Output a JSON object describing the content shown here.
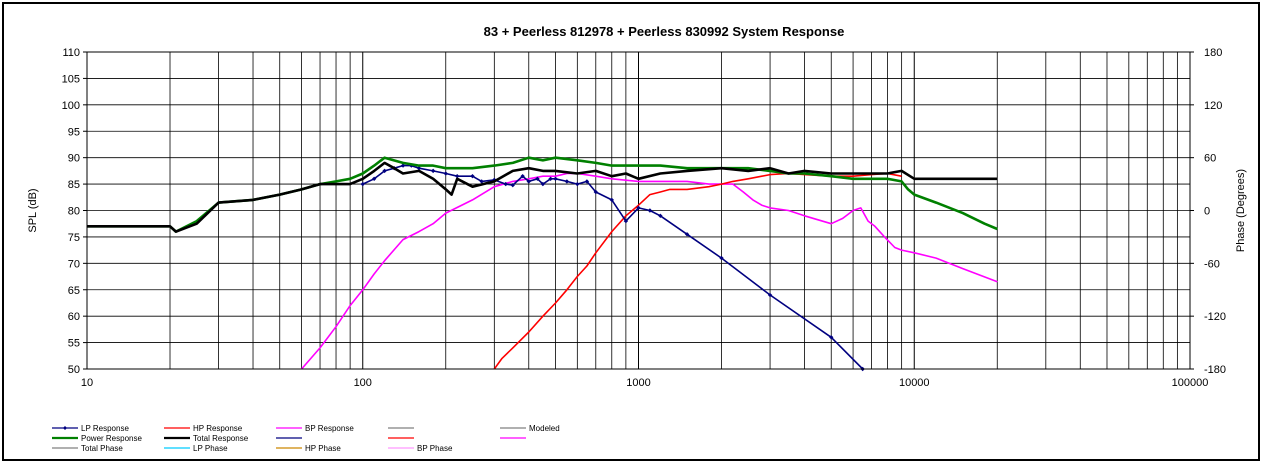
{
  "chart_data": {
    "type": "line",
    "title": "83 + Peerless  812978  + Peerless  830992   System Response",
    "xlabel": "",
    "ylabel": "SPL (dB)",
    "y2label": "Phase (Degrees)",
    "x_scale": "log",
    "xlim": [
      10,
      100000
    ],
    "ylim": [
      50,
      110
    ],
    "y2lim": [
      -180,
      180
    ],
    "grid": true,
    "legend_position": "bottom",
    "x_tick_labels": [
      "10",
      "100",
      "1000",
      "10000",
      "100000"
    ],
    "y_tick_labels": [
      "50",
      "55",
      "60",
      "65",
      "70",
      "75",
      "80",
      "85",
      "90",
      "95",
      "100",
      "105",
      "110"
    ],
    "y2_tick_labels": [
      "-180",
      "-120",
      "-60",
      "0",
      "60",
      "120",
      "180"
    ],
    "series": [
      {
        "name": "LP Response",
        "color": "#000080",
        "axis": "spl",
        "marker": "diamond",
        "x": [
          100,
          110,
          120,
          130,
          140,
          150,
          160,
          180,
          200,
          220,
          250,
          270,
          300,
          330,
          350,
          380,
          400,
          430,
          450,
          480,
          500,
          550,
          600,
          650,
          700,
          800,
          900,
          1000,
          1100,
          1200,
          1500,
          2000,
          3000,
          5000,
          6500
        ],
        "y": [
          85,
          86,
          87.5,
          88,
          88.5,
          88.5,
          88,
          87.5,
          87,
          86.5,
          86.5,
          85.5,
          85.8,
          85,
          84.8,
          86.5,
          85.5,
          86,
          85,
          86,
          86,
          85.5,
          85,
          85.5,
          83.5,
          82,
          78,
          80.5,
          80,
          79,
          75.5,
          71,
          64,
          56,
          50
        ]
      },
      {
        "name": "HP Response",
        "color": "#ff0000",
        "axis": "spl",
        "x": [
          300,
          320,
          350,
          400,
          450,
          500,
          550,
          600,
          650,
          700,
          800,
          900,
          1000,
          1100,
          1200,
          1300,
          1500,
          1800,
          2000,
          2200,
          2500,
          2800,
          3000,
          3500,
          4000,
          5000,
          6000,
          7000,
          8000,
          9000
        ],
        "y": [
          50,
          52,
          54,
          57,
          60,
          62.5,
          65,
          67.5,
          69.5,
          72,
          76,
          79,
          81,
          83,
          83.5,
          84,
          84,
          84.5,
          85,
          85.5,
          86,
          86.5,
          86.8,
          87,
          86.8,
          86.5,
          86.5,
          86.8,
          87,
          86.5
        ]
      },
      {
        "name": "BP Response",
        "color": "#ff00ff",
        "axis": "spl",
        "x": [
          60,
          70,
          80,
          90,
          100,
          110,
          120,
          140,
          160,
          180,
          200,
          250,
          300,
          350,
          400,
          450,
          500,
          550,
          600,
          700,
          800,
          1000,
          1200,
          1500,
          1800,
          2000,
          2200,
          2400,
          2600,
          2800,
          3000,
          3500,
          4000,
          5000,
          5500,
          6000,
          6400,
          6800,
          7200,
          7800,
          8500,
          9000,
          10000,
          12000,
          15000,
          20000
        ],
        "y": [
          50,
          54,
          58,
          62,
          65,
          68,
          70.5,
          74.5,
          76,
          77.5,
          79.5,
          82,
          84.5,
          85.5,
          86,
          86.5,
          86.5,
          87,
          87,
          86.5,
          86,
          85.5,
          85.5,
          85.5,
          85,
          85,
          85,
          83.5,
          82,
          81,
          80.5,
          80,
          79,
          77.5,
          78.5,
          80,
          80.5,
          78,
          77,
          75,
          73,
          72.5,
          72,
          71,
          69,
          66.5
        ]
      },
      {
        "name": "Power Response",
        "color": "#008000",
        "axis": "spl",
        "x": [
          10,
          20,
          21,
          25,
          30,
          40,
          50,
          60,
          70,
          80,
          90,
          100,
          110,
          120,
          140,
          160,
          180,
          200,
          250,
          300,
          350,
          400,
          450,
          500,
          600,
          700,
          800,
          1000,
          1200,
          1500,
          2000,
          2500,
          3000,
          3500,
          4000,
          5000,
          6000,
          7000,
          8000,
          9000,
          9500,
          10000,
          12000,
          15000,
          18000,
          20000
        ],
        "y": [
          77,
          77,
          76,
          78,
          81.5,
          82,
          83,
          84,
          85,
          85.5,
          86,
          87,
          88.5,
          90,
          89,
          88.5,
          88.5,
          88,
          88,
          88.5,
          89,
          90,
          89.5,
          90,
          89.5,
          89,
          88.5,
          88.5,
          88.5,
          88,
          88,
          88,
          87.5,
          87,
          87,
          86.5,
          86,
          86,
          86,
          85.5,
          84,
          83,
          81.5,
          79.5,
          77.5,
          76.5
        ]
      },
      {
        "name": "Total Response",
        "color": "#000000",
        "axis": "spl",
        "x": [
          10,
          20,
          21,
          25,
          30,
          40,
          50,
          60,
          70,
          80,
          90,
          100,
          110,
          120,
          130,
          140,
          160,
          180,
          200,
          210,
          220,
          250,
          300,
          350,
          400,
          450,
          500,
          600,
          700,
          800,
          900,
          1000,
          1200,
          1500,
          2000,
          2500,
          3000,
          3500,
          4000,
          5000,
          6000,
          7000,
          8000,
          9000,
          10000,
          15000,
          20000
        ],
        "y": [
          77,
          77,
          76,
          77.5,
          81.5,
          82,
          83,
          84,
          85,
          85,
          85,
          86,
          87.5,
          89,
          88,
          87,
          87.5,
          86,
          84,
          83,
          86,
          84.5,
          85.5,
          87.5,
          88,
          87.5,
          87.5,
          87,
          87.5,
          86.5,
          87,
          86,
          87,
          87.5,
          88,
          87.5,
          88,
          87,
          87.5,
          87,
          87,
          87,
          87,
          87.5,
          86,
          86,
          86
        ]
      },
      {
        "name": "",
        "color": "#808080",
        "axis": "spl",
        "x": [],
        "y": []
      },
      {
        "name": "Modeled",
        "color": "#808080",
        "axis": "spl",
        "x": [],
        "y": []
      },
      {
        "name": "",
        "color": "#000080",
        "axis": "spl",
        "x": [],
        "y": []
      },
      {
        "name": "",
        "color": "#ff0000",
        "axis": "spl",
        "x": [],
        "y": []
      },
      {
        "name": "",
        "color": "#ff00ff",
        "axis": "spl",
        "x": [],
        "y": []
      },
      {
        "name": "Total Phase",
        "color": "#808080",
        "axis": "phase",
        "x": [],
        "y": []
      },
      {
        "name": "LP Phase",
        "color": "#00ccff",
        "axis": "phase",
        "x": [],
        "y": []
      },
      {
        "name": "HP Phase",
        "color": "#cc8800",
        "axis": "phase",
        "x": [],
        "y": []
      },
      {
        "name": "BP Phase",
        "color": "#ff99ff",
        "axis": "phase",
        "x": [],
        "y": []
      }
    ],
    "legend": [
      {
        "name": "LP Response",
        "color": "#000080",
        "marker": true
      },
      {
        "name": "HP Response",
        "color": "#ff0000"
      },
      {
        "name": "BP Response",
        "color": "#ff00ff"
      },
      {
        "name": "",
        "color": "#808080"
      },
      {
        "name": "Modeled",
        "color": "#808080"
      },
      {
        "name": "Power Response",
        "color": "#008000"
      },
      {
        "name": "Total Response",
        "color": "#000000"
      },
      {
        "name": "",
        "color": "#000080"
      },
      {
        "name": "",
        "color": "#ff0000"
      },
      {
        "name": "",
        "color": "#ff00ff"
      },
      {
        "name": "Total Phase",
        "color": "#808080"
      },
      {
        "name": "LP Phase",
        "color": "#00ccff"
      },
      {
        "name": "HP Phase",
        "color": "#cc8800"
      },
      {
        "name": "BP Phase",
        "color": "#ff99ff"
      }
    ]
  }
}
